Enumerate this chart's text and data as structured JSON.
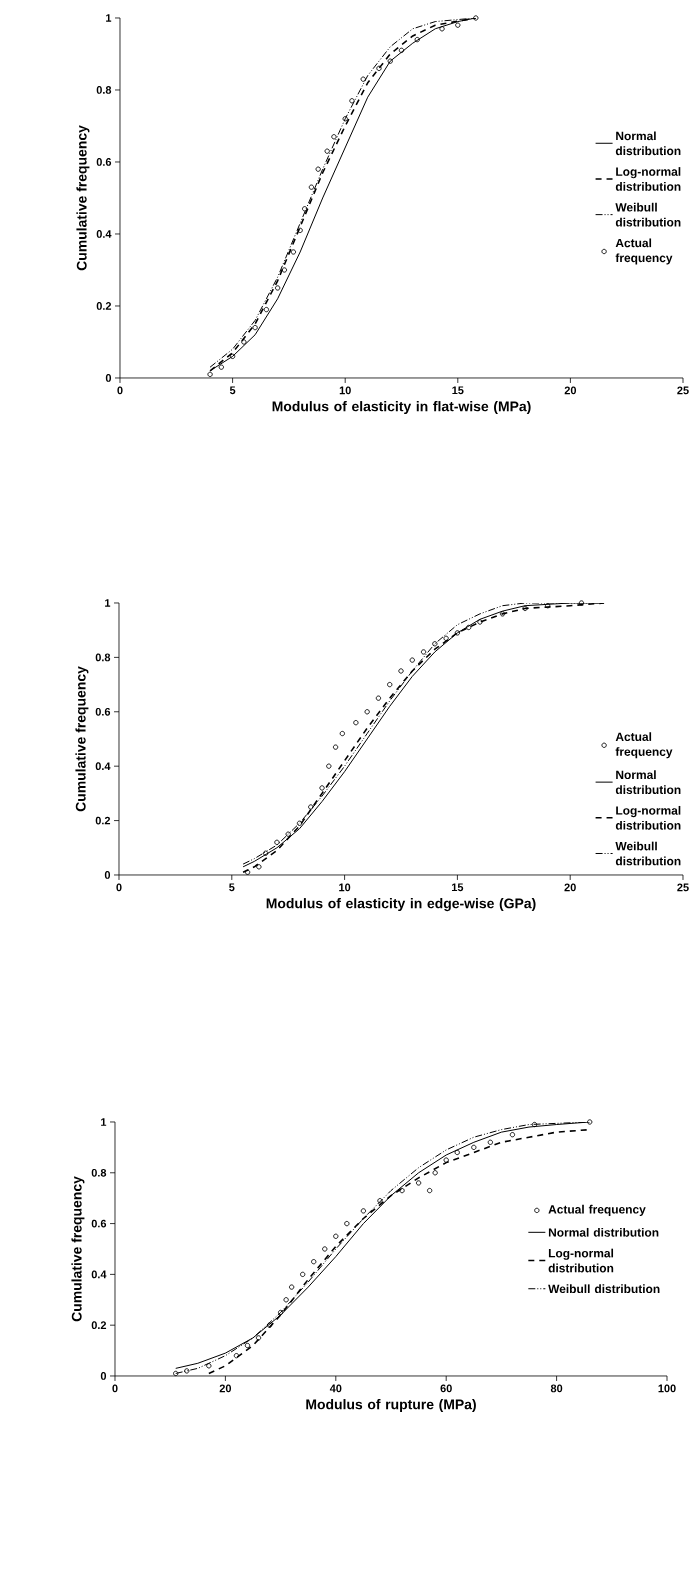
{
  "chart_data": [
    {
      "type": "line",
      "xlabel": "Modulus of elasticity in flat-wise (MPa)",
      "ylabel": "Cumulative frequency",
      "xlim": [
        0,
        25
      ],
      "ylim": [
        0,
        1
      ],
      "xticks": [
        0,
        5,
        10,
        15,
        20,
        25
      ],
      "yticks": [
        0,
        0.2,
        0.4,
        0.6,
        0.8,
        1
      ],
      "legend": "right",
      "grid": false,
      "series": [
        {
          "name": "Normal distribution",
          "line_style": "solid",
          "color": "#000000",
          "x": [
            4,
            5,
            6,
            7,
            8,
            9,
            10,
            11,
            12,
            13,
            14,
            15,
            15.8
          ],
          "values": [
            0.02,
            0.06,
            0.12,
            0.22,
            0.35,
            0.5,
            0.64,
            0.78,
            0.88,
            0.93,
            0.97,
            0.99,
            1.0
          ]
        },
        {
          "name": "Log-normal distribution",
          "line_style": "dashed",
          "color": "#000000",
          "x": [
            4,
            5,
            6,
            7,
            8,
            9,
            10,
            11,
            12,
            13,
            14,
            15.8
          ],
          "values": [
            0.02,
            0.07,
            0.15,
            0.27,
            0.42,
            0.57,
            0.7,
            0.82,
            0.9,
            0.95,
            0.98,
            1.0
          ]
        },
        {
          "name": "Weibull distribution",
          "line_style": "dashdot",
          "color": "#000000",
          "x": [
            4,
            5,
            6,
            7,
            8,
            9,
            10,
            11,
            12,
            13,
            14,
            15.8
          ],
          "values": [
            0.03,
            0.08,
            0.16,
            0.28,
            0.43,
            0.58,
            0.72,
            0.84,
            0.92,
            0.97,
            0.99,
            1.0
          ]
        },
        {
          "name": "Actual frequency",
          "type": "scatter",
          "marker": "circle",
          "color": "#000000",
          "x": [
            4,
            4.5,
            5,
            5.5,
            6,
            6.5,
            7,
            7.3,
            7.7,
            8,
            8.2,
            8.5,
            8.8,
            9.2,
            9.5,
            10,
            10.3,
            10.8,
            11.5,
            12,
            12.5,
            13.2,
            14.3,
            15,
            15.8
          ],
          "values": [
            0.01,
            0.03,
            0.06,
            0.1,
            0.14,
            0.19,
            0.25,
            0.3,
            0.35,
            0.41,
            0.47,
            0.53,
            0.58,
            0.63,
            0.67,
            0.72,
            0.77,
            0.83,
            0.86,
            0.88,
            0.91,
            0.94,
            0.97,
            0.98,
            1.0
          ]
        }
      ]
    },
    {
      "type": "line",
      "xlabel": "Modulus of elasticity in edge-wise (GPa)",
      "ylabel": "Cumulative frequency",
      "xlim": [
        0,
        25
      ],
      "ylim": [
        0,
        1
      ],
      "xticks": [
        0,
        5,
        10,
        15,
        20,
        25
      ],
      "yticks": [
        0,
        0.2,
        0.4,
        0.6,
        0.8,
        1
      ],
      "legend": "bottom right",
      "grid": false,
      "series": [
        {
          "name": "Actual frequency",
          "type": "scatter",
          "marker": "circle",
          "color": "#000000",
          "x": [
            5.7,
            6.2,
            6.5,
            7,
            7.5,
            8,
            8.5,
            9,
            9.3,
            9.6,
            9.9,
            10.5,
            11,
            11.5,
            12,
            12.5,
            13,
            13.5,
            14,
            14.5,
            15,
            15.5,
            16,
            17,
            18,
            19,
            20.5
          ],
          "values": [
            0.01,
            0.03,
            0.08,
            0.12,
            0.15,
            0.19,
            0.25,
            0.32,
            0.4,
            0.47,
            0.52,
            0.56,
            0.6,
            0.65,
            0.7,
            0.75,
            0.79,
            0.82,
            0.85,
            0.87,
            0.89,
            0.91,
            0.93,
            0.96,
            0.98,
            0.99,
            1.0
          ]
        },
        {
          "name": "Normal distribution",
          "line_style": "solid",
          "color": "#000000",
          "x": [
            5.5,
            6,
            7,
            8,
            9,
            10,
            11,
            12,
            13,
            14,
            15,
            16,
            17,
            18,
            20,
            21.5
          ],
          "values": [
            0.03,
            0.05,
            0.1,
            0.17,
            0.27,
            0.38,
            0.5,
            0.62,
            0.73,
            0.82,
            0.89,
            0.94,
            0.97,
            0.99,
            1.0,
            1.0
          ]
        },
        {
          "name": "Log-normal distribution",
          "line_style": "dashed",
          "color": "#000000",
          "x": [
            5.5,
            6,
            7,
            8,
            9,
            10,
            11,
            12,
            13,
            14,
            15,
            16,
            17,
            18,
            20,
            21.5
          ],
          "values": [
            0.01,
            0.03,
            0.09,
            0.18,
            0.3,
            0.42,
            0.54,
            0.65,
            0.75,
            0.83,
            0.89,
            0.93,
            0.96,
            0.98,
            0.99,
            1.0
          ]
        },
        {
          "name": "Weibull distribution",
          "line_style": "dashdot",
          "color": "#000000",
          "x": [
            5.5,
            6,
            7,
            8,
            9,
            10,
            11,
            12,
            13,
            14,
            15,
            16,
            17,
            18,
            21.5
          ],
          "values": [
            0.04,
            0.06,
            0.11,
            0.19,
            0.29,
            0.4,
            0.52,
            0.64,
            0.75,
            0.85,
            0.92,
            0.96,
            0.99,
            1.0,
            1.0
          ]
        }
      ]
    },
    {
      "type": "line",
      "xlabel": "Modulus of rupture (MPa)",
      "ylabel": "Cumulative frequency",
      "xlim": [
        0,
        100
      ],
      "ylim": [
        0,
        1
      ],
      "xticks": [
        0,
        20,
        40,
        60,
        80,
        100
      ],
      "yticks": [
        0,
        0.2,
        0.4,
        0.6,
        0.8,
        1
      ],
      "legend": "right",
      "grid": false,
      "series": [
        {
          "name": "Actual frequency",
          "type": "scatter",
          "marker": "circle",
          "color": "#000000",
          "x": [
            11,
            13,
            17,
            22,
            24,
            26,
            28,
            30,
            31,
            32,
            34,
            36,
            38,
            40,
            42,
            45,
            48,
            52,
            55,
            57,
            58,
            60,
            62,
            65,
            68,
            72,
            76,
            86
          ],
          "values": [
            0.01,
            0.02,
            0.04,
            0.08,
            0.12,
            0.15,
            0.2,
            0.25,
            0.3,
            0.35,
            0.4,
            0.45,
            0.5,
            0.55,
            0.6,
            0.65,
            0.69,
            0.73,
            0.76,
            0.73,
            0.8,
            0.85,
            0.88,
            0.9,
            0.92,
            0.95,
            0.99,
            1.0
          ]
        },
        {
          "name": "Normal distribution",
          "line_style": "solid",
          "color": "#000000",
          "x": [
            11,
            15,
            20,
            25,
            30,
            35,
            40,
            45,
            50,
            55,
            60,
            65,
            70,
            75,
            80,
            86
          ],
          "values": [
            0.03,
            0.05,
            0.09,
            0.15,
            0.24,
            0.35,
            0.47,
            0.6,
            0.71,
            0.8,
            0.87,
            0.92,
            0.96,
            0.98,
            0.99,
            1.0
          ]
        },
        {
          "name": "Log-normal distribution",
          "line_style": "dashed",
          "color": "#000000",
          "x": [
            17,
            20,
            25,
            30,
            35,
            40,
            45,
            50,
            55,
            60,
            65,
            70,
            75,
            80,
            86
          ],
          "values": [
            0.01,
            0.04,
            0.12,
            0.24,
            0.38,
            0.51,
            0.62,
            0.71,
            0.78,
            0.84,
            0.88,
            0.92,
            0.94,
            0.96,
            0.97
          ]
        },
        {
          "name": "Weibull distribution",
          "line_style": "dashdot",
          "color": "#000000",
          "x": [
            11,
            15,
            20,
            25,
            30,
            35,
            40,
            45,
            50,
            55,
            60,
            65,
            70,
            75,
            86
          ],
          "values": [
            0.01,
            0.03,
            0.08,
            0.15,
            0.25,
            0.37,
            0.5,
            0.62,
            0.73,
            0.82,
            0.89,
            0.94,
            0.97,
            0.99,
            1.0
          ]
        }
      ]
    }
  ]
}
